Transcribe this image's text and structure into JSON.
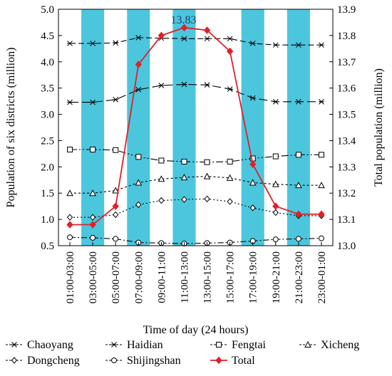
{
  "chart_data": {
    "type": "line",
    "xlabel": "Time of day (24 hours)",
    "ylabel_left": "Population of six districts (million)",
    "ylabel_right": "Total population (million)",
    "ylim_left": [
      0.5,
      5.0
    ],
    "ylim_right": [
      13.0,
      13.9
    ],
    "yticks_left": [
      "0.5",
      "1.0",
      "1.5",
      "2.0",
      "2.5",
      "3.0",
      "3.5",
      "4.0",
      "4.5",
      "5.0"
    ],
    "yticks_right": [
      "13.0",
      "13.1",
      "13.2",
      "13.3",
      "13.4",
      "13.5",
      "13.6",
      "13.7",
      "13.8",
      "13.9"
    ],
    "categories": [
      "01:00-03:00",
      "03:00-05:00",
      "05:00-07:00",
      "07:00-09:00",
      "09:00-11:00",
      "11:00-13:00",
      "13:00-15:00",
      "15:00-17:00",
      "17:00-19:00",
      "19:00-21:00",
      "21:00-23:00",
      "23:00-01:00"
    ],
    "shaded_categories": [
      "03:00-05:00",
      "07:00-09:00",
      "11:00-13:00",
      "17:00-19:00",
      "21:00-23:00"
    ],
    "shade_color": "#4cc6dd",
    "annotation": "13.83",
    "legend_position": "bottom",
    "series": [
      {
        "name": "Chaoyang",
        "axis": "left",
        "marker": "asterisk",
        "dash": "8,4",
        "color": "#000000",
        "values": [
          4.35,
          4.35,
          4.36,
          4.46,
          4.45,
          4.44,
          4.44,
          4.44,
          4.35,
          4.32,
          4.32,
          4.32
        ]
      },
      {
        "name": "Haidian",
        "axis": "left",
        "marker": "asterisk",
        "dash": "12,5",
        "color": "#000000",
        "values": [
          3.23,
          3.23,
          3.28,
          3.47,
          3.55,
          3.57,
          3.56,
          3.48,
          3.31,
          3.24,
          3.24,
          3.24
        ]
      },
      {
        "name": "Fengtai",
        "axis": "left",
        "marker": "square",
        "dash": "10,3,2,3,2,3",
        "color": "#000000",
        "values": [
          2.33,
          2.33,
          2.32,
          2.19,
          2.12,
          2.1,
          2.09,
          2.1,
          2.16,
          2.2,
          2.23,
          2.23
        ]
      },
      {
        "name": "Xicheng",
        "axis": "left",
        "marker": "triangle",
        "dash": "3,3",
        "color": "#000000",
        "values": [
          1.5,
          1.5,
          1.55,
          1.7,
          1.77,
          1.8,
          1.82,
          1.79,
          1.7,
          1.67,
          1.65,
          1.65
        ]
      },
      {
        "name": "Dongcheng",
        "axis": "left",
        "marker": "diamond",
        "dash": "2,3",
        "color": "#000000",
        "values": [
          1.04,
          1.04,
          1.09,
          1.28,
          1.36,
          1.38,
          1.39,
          1.34,
          1.22,
          1.13,
          1.07,
          1.07
        ]
      },
      {
        "name": "Shijingshan",
        "axis": "left",
        "marker": "circle",
        "dash": "8,3,2,3",
        "color": "#000000",
        "values": [
          0.66,
          0.65,
          0.63,
          0.56,
          0.55,
          0.54,
          0.55,
          0.56,
          0.59,
          0.62,
          0.63,
          0.64
        ]
      },
      {
        "name": "Total",
        "axis": "right",
        "marker": "filled-diamond",
        "dash": "",
        "color": "#e0202a",
        "values": [
          13.08,
          13.08,
          13.15,
          13.69,
          13.8,
          13.83,
          13.82,
          13.74,
          13.31,
          13.15,
          13.12,
          13.12
        ]
      }
    ]
  }
}
